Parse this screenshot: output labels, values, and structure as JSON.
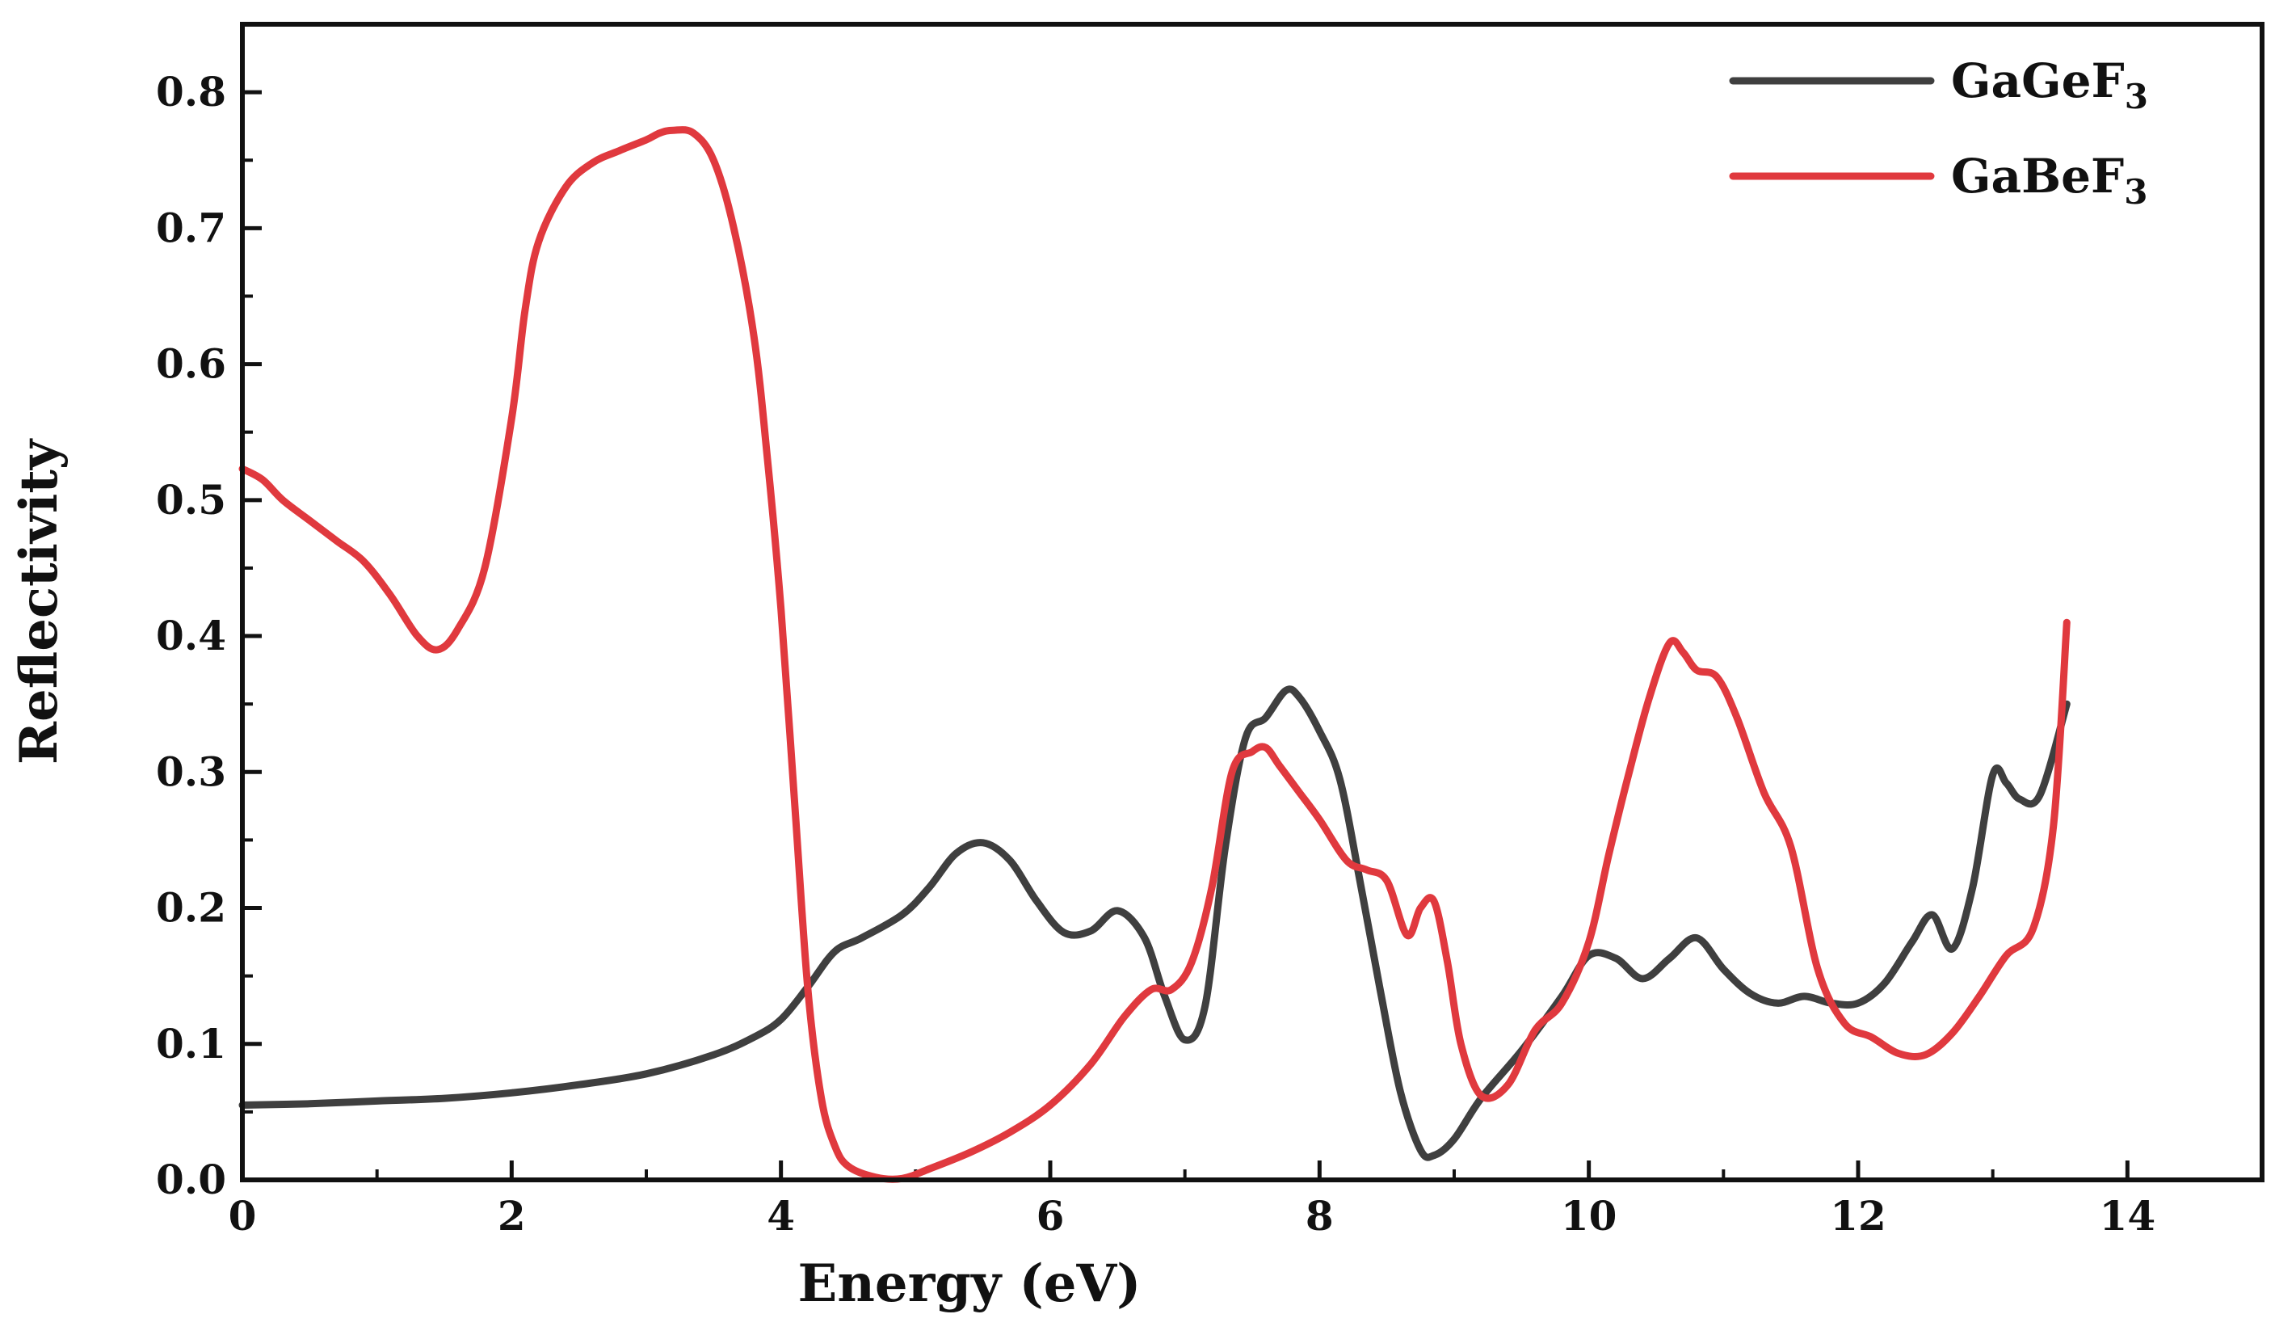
{
  "chart_data": {
    "type": "line",
    "title": "",
    "xlabel": "Energy (eV)",
    "ylabel": "Reflectivity",
    "xlim": [
      0,
      15
    ],
    "ylim": [
      0,
      0.85
    ],
    "xticks": [
      0,
      2,
      4,
      6,
      8,
      10,
      12,
      14
    ],
    "xtick_labels": [
      "0",
      "2",
      "4",
      "6",
      "8",
      "10",
      "12",
      "14"
    ],
    "yticks": [
      0.0,
      0.1,
      0.2,
      0.3,
      0.4,
      0.5,
      0.6,
      0.7,
      0.8
    ],
    "ytick_labels": [
      "0.0",
      "0.1",
      "0.2",
      "0.3",
      "0.4",
      "0.5",
      "0.6",
      "0.7",
      "0.8"
    ],
    "legend_position": "top-right",
    "series": [
      {
        "name": "GaGeF",
        "subscript": "3",
        "color": "#3f3f3f",
        "x": [
          0,
          0.5,
          1.0,
          1.5,
          2.0,
          2.5,
          3.0,
          3.5,
          3.8,
          4.0,
          4.2,
          4.4,
          4.6,
          4.9,
          5.1,
          5.3,
          5.5,
          5.7,
          5.9,
          6.1,
          6.3,
          6.5,
          6.7,
          6.85,
          7.0,
          7.15,
          7.3,
          7.45,
          7.6,
          7.75,
          7.85,
          8.0,
          8.15,
          8.3,
          8.45,
          8.6,
          8.75,
          8.85,
          9.0,
          9.2,
          9.5,
          9.8,
          10.0,
          10.2,
          10.4,
          10.6,
          10.8,
          11.0,
          11.2,
          11.4,
          11.6,
          11.8,
          12.0,
          12.2,
          12.4,
          12.55,
          12.7,
          12.85,
          13.0,
          13.1,
          13.2,
          13.35,
          13.55
        ],
        "values": [
          0.055,
          0.056,
          0.058,
          0.06,
          0.064,
          0.07,
          0.078,
          0.092,
          0.105,
          0.118,
          0.142,
          0.168,
          0.178,
          0.195,
          0.215,
          0.24,
          0.248,
          0.235,
          0.205,
          0.182,
          0.183,
          0.198,
          0.178,
          0.135,
          0.103,
          0.128,
          0.245,
          0.325,
          0.34,
          0.36,
          0.355,
          0.33,
          0.295,
          0.22,
          0.14,
          0.065,
          0.022,
          0.018,
          0.03,
          0.06,
          0.095,
          0.135,
          0.165,
          0.163,
          0.148,
          0.163,
          0.178,
          0.155,
          0.137,
          0.13,
          0.135,
          0.13,
          0.13,
          0.145,
          0.175,
          0.195,
          0.17,
          0.215,
          0.298,
          0.292,
          0.28,
          0.283,
          0.35
        ]
      },
      {
        "name": "GaBeF",
        "subscript": "3",
        "color": "#e0393e",
        "x": [
          0,
          0.15,
          0.3,
          0.5,
          0.7,
          0.9,
          1.1,
          1.3,
          1.45,
          1.6,
          1.8,
          2.0,
          2.1,
          2.2,
          2.4,
          2.6,
          2.8,
          3.0,
          3.1,
          3.2,
          3.35,
          3.5,
          3.65,
          3.8,
          3.9,
          4.0,
          4.1,
          4.2,
          4.3,
          4.4,
          4.5,
          4.7,
          4.9,
          5.1,
          5.4,
          5.7,
          6.0,
          6.3,
          6.55,
          6.75,
          6.9,
          7.05,
          7.2,
          7.35,
          7.5,
          7.6,
          7.7,
          7.85,
          8.0,
          8.2,
          8.35,
          8.5,
          8.65,
          8.75,
          8.85,
          8.95,
          9.05,
          9.2,
          9.4,
          9.6,
          9.8,
          10.0,
          10.15,
          10.3,
          10.45,
          10.6,
          10.7,
          10.8,
          10.95,
          11.1,
          11.3,
          11.5,
          11.7,
          11.9,
          12.1,
          12.3,
          12.5,
          12.7,
          12.9,
          13.1,
          13.3,
          13.45,
          13.55
        ],
        "values": [
          0.523,
          0.515,
          0.5,
          0.485,
          0.47,
          0.455,
          0.43,
          0.4,
          0.39,
          0.405,
          0.45,
          0.56,
          0.64,
          0.69,
          0.73,
          0.748,
          0.757,
          0.765,
          0.77,
          0.772,
          0.77,
          0.75,
          0.7,
          0.62,
          0.53,
          0.42,
          0.28,
          0.14,
          0.06,
          0.025,
          0.01,
          0.002,
          0.001,
          0.008,
          0.02,
          0.035,
          0.055,
          0.085,
          0.12,
          0.14,
          0.14,
          0.16,
          0.215,
          0.3,
          0.315,
          0.318,
          0.305,
          0.285,
          0.265,
          0.235,
          0.228,
          0.22,
          0.18,
          0.2,
          0.205,
          0.16,
          0.1,
          0.062,
          0.07,
          0.11,
          0.13,
          0.175,
          0.24,
          0.3,
          0.355,
          0.395,
          0.388,
          0.375,
          0.37,
          0.34,
          0.285,
          0.245,
          0.155,
          0.115,
          0.105,
          0.093,
          0.092,
          0.108,
          0.135,
          0.165,
          0.185,
          0.26,
          0.41
        ]
      }
    ]
  }
}
